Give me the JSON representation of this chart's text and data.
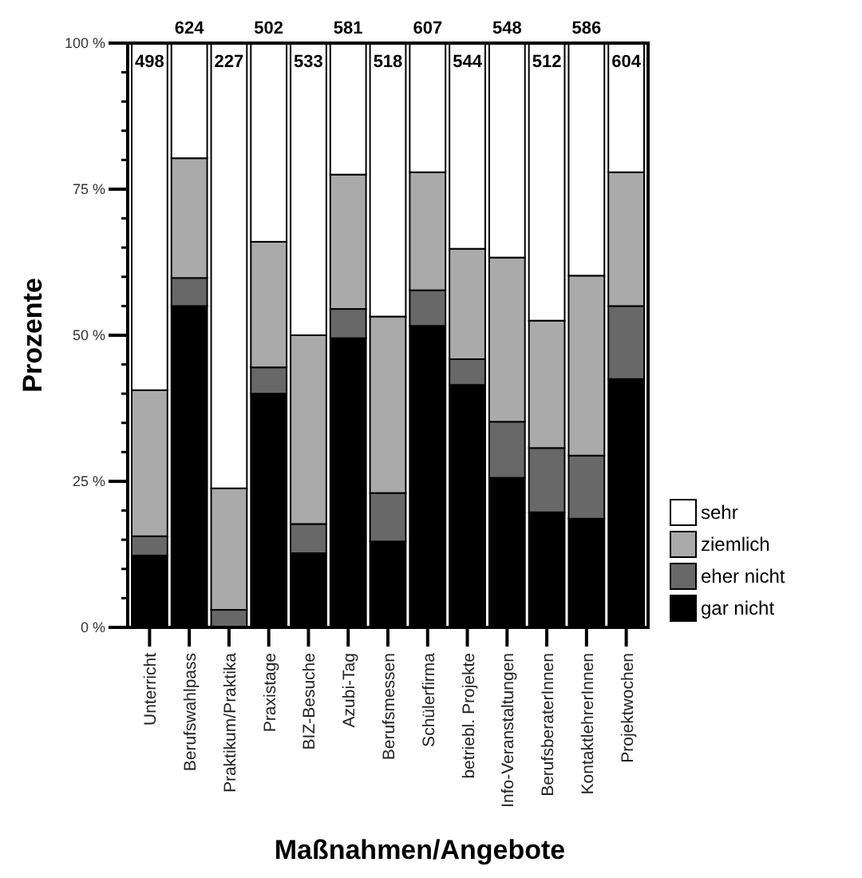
{
  "chart_data": {
    "type": "bar",
    "stacked": true,
    "xlabel": "Maßnahmen/Angebote",
    "ylabel": "Prozente",
    "categories": [
      "Unterricht",
      "Berufswahlpass",
      "Praktikum/Praktika",
      "Praxistage",
      "BIZ-Besuche",
      "Azubi-Tag",
      "Berufsmessen",
      "Schülerfirma",
      "betriebl. Projekte",
      "Info-Veranstaltungen",
      "BerufsberaterInnen",
      "KontaktlehrerInnen",
      "Projektwochen"
    ],
    "series": [
      {
        "name": "gar nicht",
        "color": "#000000",
        "values": [
          12.3,
          55,
          0,
          40,
          12.7,
          49.5,
          14.7,
          51.6,
          41.5,
          25.6,
          19.7,
          18.6,
          42.5
        ]
      },
      {
        "name": "eher nicht",
        "color": "#686868",
        "values": [
          3.3,
          4.8,
          3,
          4.5,
          5,
          5,
          8.3,
          6.1,
          4.4,
          9.6,
          11,
          10.8,
          12.5
        ]
      },
      {
        "name": "ziemlich",
        "color": "#aaaaaa",
        "values": [
          25,
          20.5,
          20.8,
          21.5,
          32.3,
          23,
          30.2,
          20.2,
          18.9,
          28.1,
          21.8,
          30.8,
          22.9
        ]
      },
      {
        "name": "sehr",
        "color": "#ffffff",
        "values": [
          59.4,
          19.7,
          76.2,
          34,
          50,
          22.5,
          46.8,
          22.1,
          35.2,
          36.7,
          47.5,
          39.8,
          22.1
        ]
      }
    ],
    "ylim": [
      0,
      100
    ],
    "yticks": [
      {
        "value": 0,
        "label": "0 %"
      },
      {
        "value": 5,
        "label": null
      },
      {
        "value": 10,
        "label": null
      },
      {
        "value": 15,
        "label": null
      },
      {
        "value": 20,
        "label": null
      },
      {
        "value": 25,
        "label": "25 %"
      },
      {
        "value": 30,
        "label": null
      },
      {
        "value": 35,
        "label": null
      },
      {
        "value": 40,
        "label": null
      },
      {
        "value": 45,
        "label": null
      },
      {
        "value": 50,
        "label": "50 %"
      },
      {
        "value": 55,
        "label": null
      },
      {
        "value": 60,
        "label": null
      },
      {
        "value": 65,
        "label": null
      },
      {
        "value": 70,
        "label": null
      },
      {
        "value": 75,
        "label": "75 %"
      },
      {
        "value": 80,
        "label": null
      },
      {
        "value": 85,
        "label": null
      },
      {
        "value": 90,
        "label": null
      },
      {
        "value": 95,
        "label": null
      },
      {
        "value": 100,
        "label": "100 %"
      }
    ],
    "annotations": [
      {
        "text": "498",
        "x": "Unterricht",
        "y": 100
      },
      {
        "text": "624",
        "x": "Berufswahlpass",
        "y": 100
      },
      {
        "text": "227",
        "x": "Praktikum/Praktika",
        "y": 100
      },
      {
        "text": "502",
        "x": "Praxistage",
        "y": 100
      },
      {
        "text": "533",
        "x": "BIZ-Besuche",
        "y": 100
      },
      {
        "text": "581",
        "x": "Azubi-Tag",
        "y": 100
      },
      {
        "text": "518",
        "x": "Berufsmessen",
        "y": 100
      },
      {
        "text": "607",
        "x": "Schülerfirma",
        "y": 100
      },
      {
        "text": "544",
        "x": "betriebl. Projekte",
        "y": 100
      },
      {
        "text": "548",
        "x": "Info-Veranstaltungen",
        "y": 100
      },
      {
        "text": "512",
        "x": "BerufsberaterInnen",
        "y": 100
      },
      {
        "text": "586",
        "x": "KontaktlehrerInnen",
        "y": 100
      },
      {
        "text": "604",
        "x": "Projektwochen",
        "y": 100
      }
    ],
    "grid": false,
    "legend": "bottom right"
  }
}
